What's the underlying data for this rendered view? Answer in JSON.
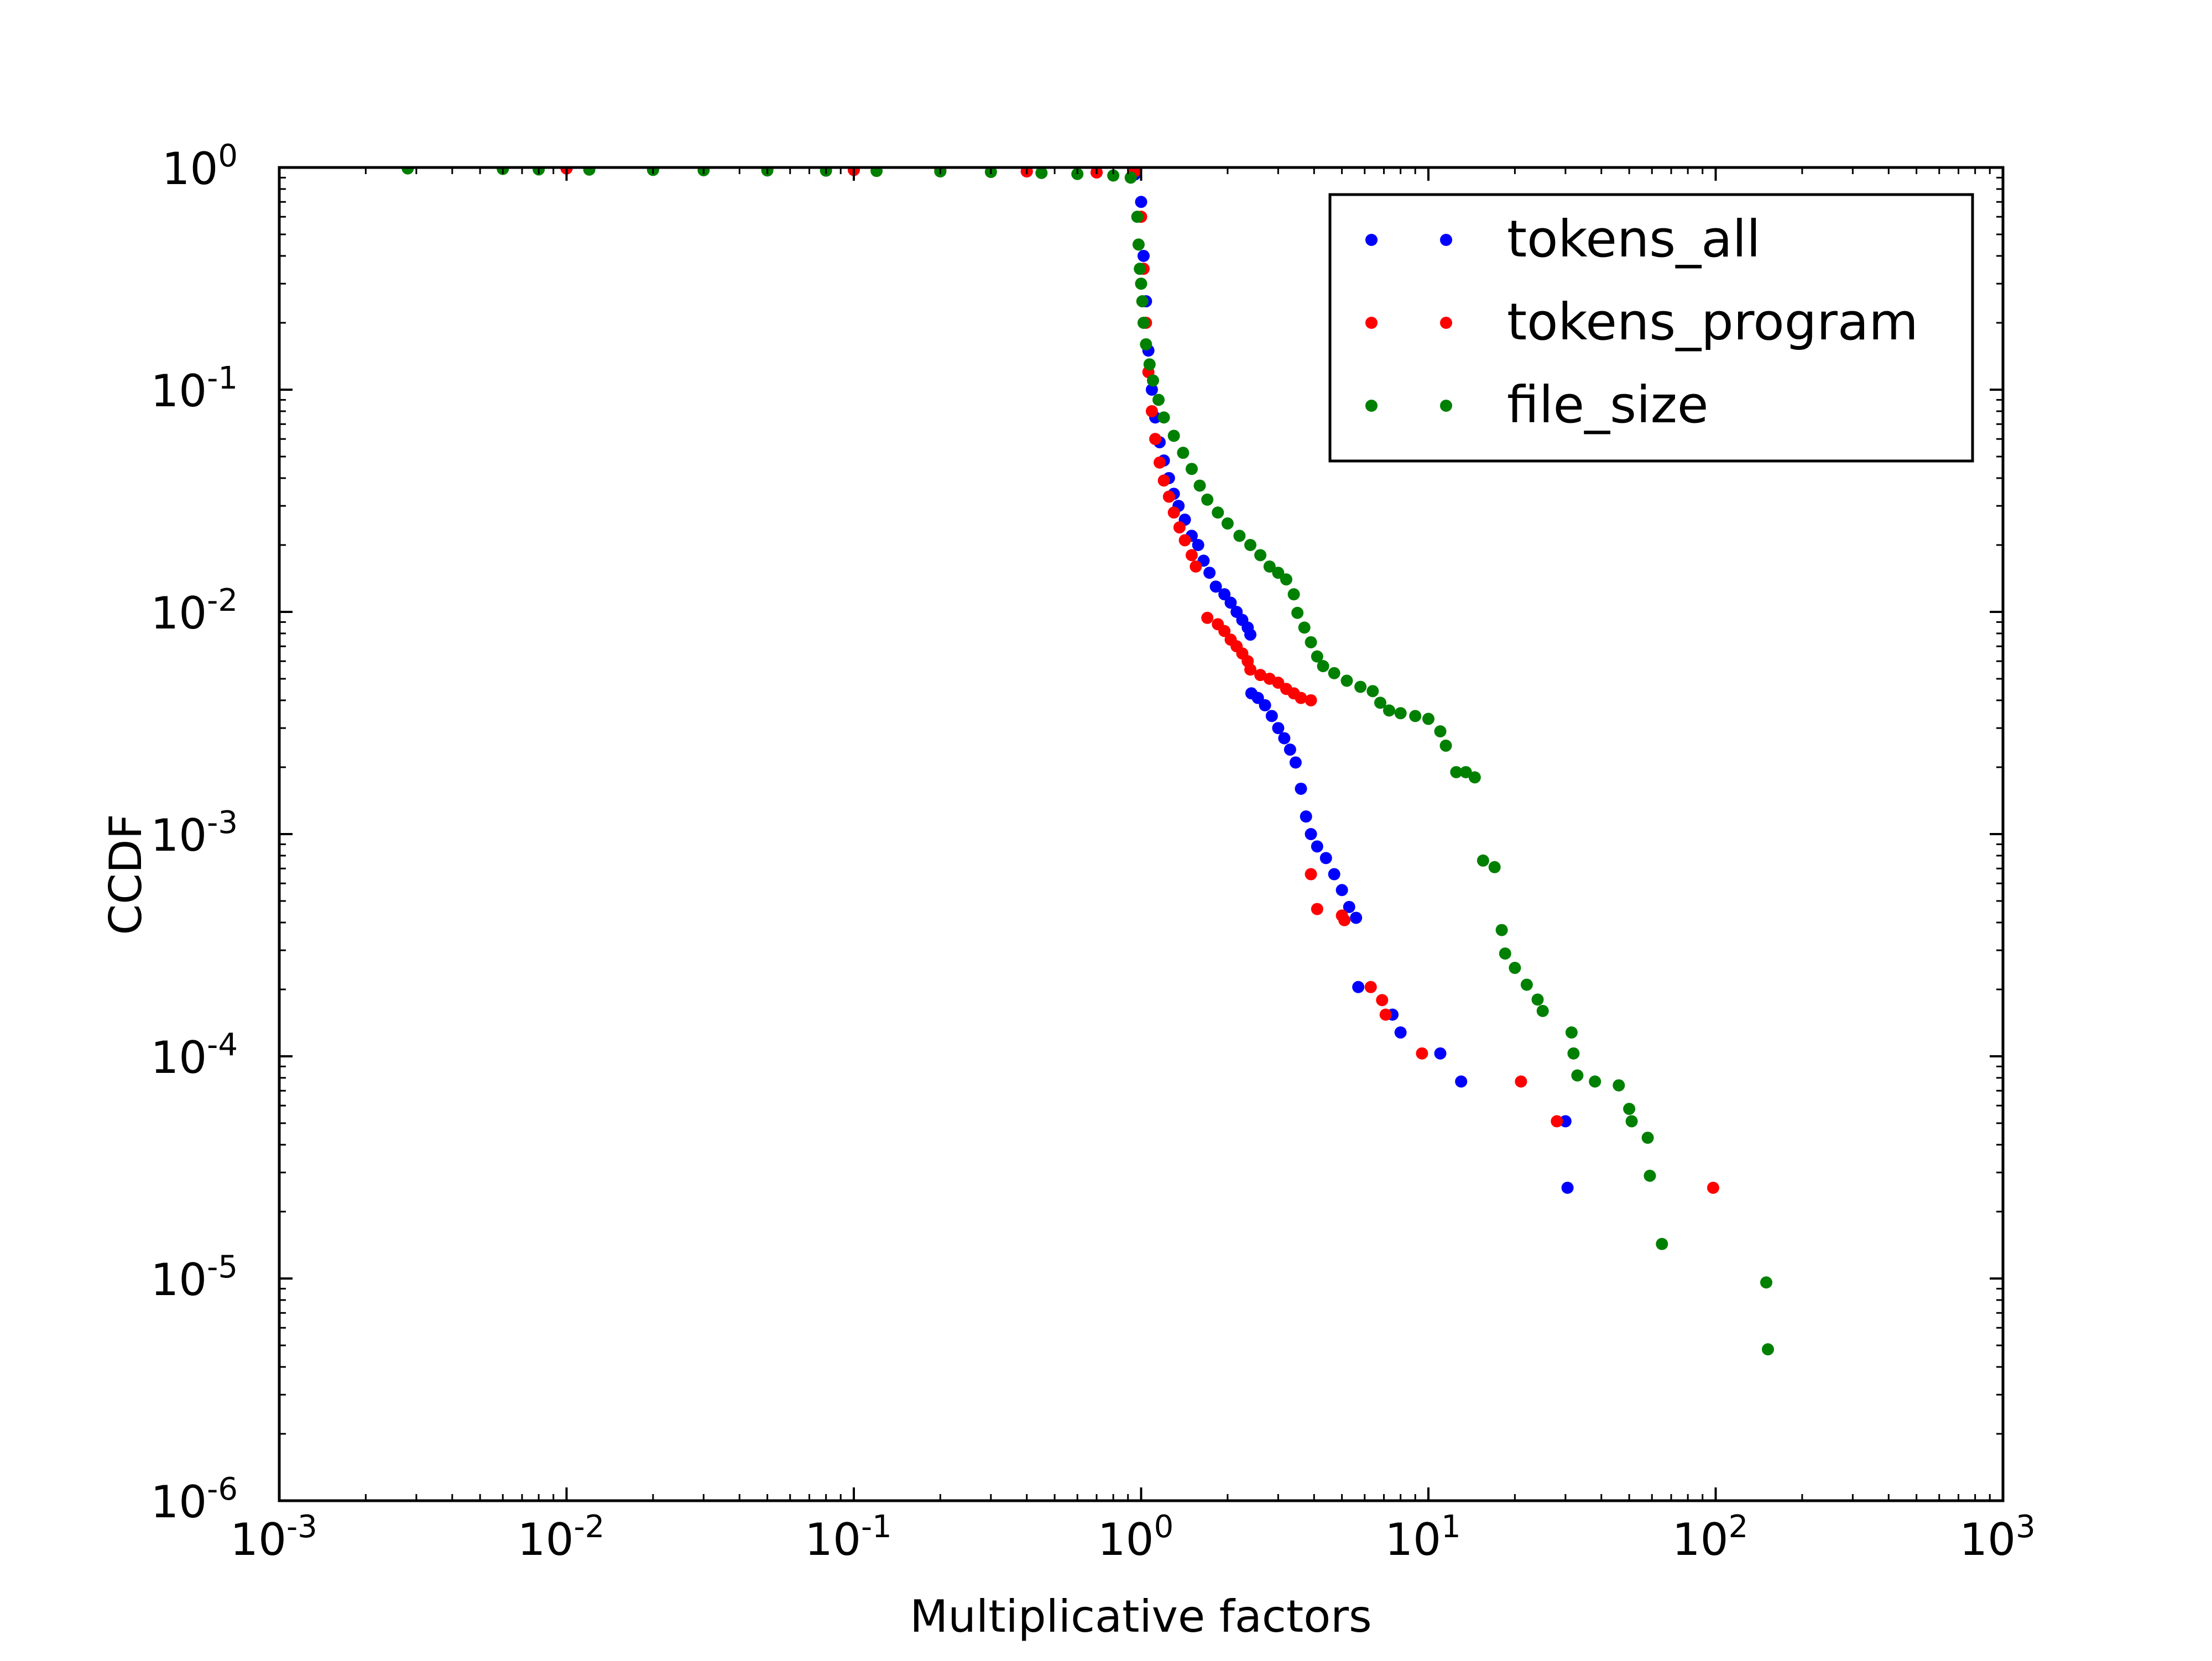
{
  "colors": {
    "tokens_all": "#0000ff",
    "tokens_program": "#ff0000",
    "file_size": "#008000",
    "axis": "#000000",
    "background": "#ffffff"
  },
  "chart_data": {
    "type": "scatter",
    "title": "",
    "xlabel": "Multiplicative factors",
    "ylabel": "CCDF",
    "xscale": "log",
    "yscale": "log",
    "xlim": [
      0.001,
      1000
    ],
    "ylim": [
      1e-06,
      1
    ],
    "grid": false,
    "legend": {
      "placement": "upper right"
    },
    "x_ticks": [
      {
        "value": 0.001,
        "base": "10",
        "exp": "-3"
      },
      {
        "value": 0.01,
        "base": "10",
        "exp": "-2"
      },
      {
        "value": 0.1,
        "base": "10",
        "exp": "-1"
      },
      {
        "value": 1,
        "base": "10",
        "exp": "0"
      },
      {
        "value": 10,
        "base": "10",
        "exp": "1"
      },
      {
        "value": 100,
        "base": "10",
        "exp": "2"
      },
      {
        "value": 1000,
        "base": "10",
        "exp": "3"
      }
    ],
    "y_ticks": [
      {
        "value": 1,
        "base": "10",
        "exp": "0"
      },
      {
        "value": 0.1,
        "base": "10",
        "exp": "-1"
      },
      {
        "value": 0.01,
        "base": "10",
        "exp": "-2"
      },
      {
        "value": 0.001,
        "base": "10",
        "exp": "-3"
      },
      {
        "value": 0.0001,
        "base": "10",
        "exp": "-4"
      },
      {
        "value": 1e-05,
        "base": "10",
        "exp": "-5"
      },
      {
        "value": 1e-06,
        "base": "10",
        "exp": "-6"
      }
    ],
    "series": [
      {
        "name": "tokens_all",
        "color": "#0000ff",
        "points": [
          [
            0.006,
            0.995
          ],
          [
            0.01,
            0.99
          ],
          [
            0.02,
            0.985
          ],
          [
            0.05,
            0.98
          ],
          [
            0.1,
            0.975
          ],
          [
            0.2,
            0.97
          ],
          [
            0.4,
            0.96
          ],
          [
            0.7,
            0.95
          ],
          [
            0.95,
            0.93
          ],
          [
            1.0,
            0.7
          ],
          [
            1.02,
            0.4
          ],
          [
            1.04,
            0.25
          ],
          [
            1.06,
            0.15
          ],
          [
            1.09,
            0.1
          ],
          [
            1.12,
            0.075
          ],
          [
            1.16,
            0.058
          ],
          [
            1.2,
            0.048
          ],
          [
            1.25,
            0.04
          ],
          [
            1.3,
            0.034
          ],
          [
            1.35,
            0.03
          ],
          [
            1.42,
            0.026
          ],
          [
            1.5,
            0.022
          ],
          [
            1.58,
            0.02
          ],
          [
            1.65,
            0.017
          ],
          [
            1.73,
            0.015
          ],
          [
            1.82,
            0.013
          ],
          [
            1.95,
            0.012
          ],
          [
            2.05,
            0.011
          ],
          [
            2.15,
            0.01
          ],
          [
            2.25,
            0.0092
          ],
          [
            2.35,
            0.0085
          ],
          [
            2.4,
            0.0079
          ],
          [
            2.42,
            0.0043
          ],
          [
            2.55,
            0.0041
          ],
          [
            2.7,
            0.0038
          ],
          [
            2.85,
            0.0034
          ],
          [
            3.0,
            0.003
          ],
          [
            3.15,
            0.0027
          ],
          [
            3.3,
            0.0024
          ],
          [
            3.45,
            0.0021
          ],
          [
            3.6,
            0.0016
          ],
          [
            3.75,
            0.0012
          ],
          [
            3.9,
            0.001
          ],
          [
            4.1,
            0.00088
          ],
          [
            4.4,
            0.00078
          ],
          [
            4.7,
            0.00066
          ],
          [
            5.0,
            0.00056
          ],
          [
            5.3,
            0.00047
          ],
          [
            5.6,
            0.00042
          ],
          [
            5.7,
            0.000205
          ],
          [
            7.5,
            0.000154
          ],
          [
            8.0,
            0.000128
          ],
          [
            11.0,
            0.000103
          ],
          [
            13.0,
            7.7e-05
          ],
          [
            30.0,
            5.1e-05
          ],
          [
            30.5,
            2.56e-05
          ]
        ]
      },
      {
        "name": "tokens_program",
        "color": "#ff0000",
        "points": [
          [
            0.006,
            0.995
          ],
          [
            0.01,
            0.99
          ],
          [
            0.02,
            0.985
          ],
          [
            0.05,
            0.98
          ],
          [
            0.1,
            0.975
          ],
          [
            0.2,
            0.97
          ],
          [
            0.4,
            0.96
          ],
          [
            0.7,
            0.95
          ],
          [
            0.95,
            0.96
          ],
          [
            1.0,
            0.6
          ],
          [
            1.02,
            0.35
          ],
          [
            1.04,
            0.2
          ],
          [
            1.06,
            0.12
          ],
          [
            1.09,
            0.08
          ],
          [
            1.12,
            0.06
          ],
          [
            1.16,
            0.047
          ],
          [
            1.2,
            0.039
          ],
          [
            1.25,
            0.033
          ],
          [
            1.3,
            0.028
          ],
          [
            1.36,
            0.024
          ],
          [
            1.42,
            0.021
          ],
          [
            1.5,
            0.018
          ],
          [
            1.55,
            0.016
          ],
          [
            1.7,
            0.0094
          ],
          [
            1.85,
            0.0088
          ],
          [
            1.95,
            0.0082
          ],
          [
            2.05,
            0.0075
          ],
          [
            2.15,
            0.007
          ],
          [
            2.25,
            0.0065
          ],
          [
            2.35,
            0.006
          ],
          [
            2.4,
            0.0055
          ],
          [
            2.6,
            0.0052
          ],
          [
            2.8,
            0.005
          ],
          [
            3.0,
            0.0048
          ],
          [
            3.2,
            0.0045
          ],
          [
            3.4,
            0.0043
          ],
          [
            3.6,
            0.0041
          ],
          [
            3.9,
            0.004
          ],
          [
            3.9,
            0.00066
          ],
          [
            4.1,
            0.00046
          ],
          [
            5.0,
            0.00043
          ],
          [
            5.1,
            0.00041
          ],
          [
            6.3,
            0.000205
          ],
          [
            6.9,
            0.000179
          ],
          [
            7.1,
            0.000154
          ],
          [
            9.5,
            0.000103
          ],
          [
            21.0,
            7.7e-05
          ],
          [
            28.0,
            5.1e-05
          ],
          [
            98.0,
            2.56e-05
          ]
        ]
      },
      {
        "name": "file_size",
        "color": "#008000",
        "points": [
          [
            0.0028,
            0.99
          ],
          [
            0.006,
            0.985
          ],
          [
            0.008,
            0.98
          ],
          [
            0.012,
            0.978
          ],
          [
            0.02,
            0.975
          ],
          [
            0.03,
            0.972
          ],
          [
            0.05,
            0.97
          ],
          [
            0.08,
            0.968
          ],
          [
            0.12,
            0.965
          ],
          [
            0.2,
            0.96
          ],
          [
            0.3,
            0.955
          ],
          [
            0.45,
            0.945
          ],
          [
            0.6,
            0.935
          ],
          [
            0.8,
            0.92
          ],
          [
            0.92,
            0.9
          ],
          [
            0.97,
            0.6
          ],
          [
            0.98,
            0.45
          ],
          [
            0.99,
            0.35
          ],
          [
            1.0,
            0.3
          ],
          [
            1.01,
            0.25
          ],
          [
            1.02,
            0.2
          ],
          [
            1.04,
            0.16
          ],
          [
            1.07,
            0.13
          ],
          [
            1.1,
            0.11
          ],
          [
            1.15,
            0.09
          ],
          [
            1.2,
            0.075
          ],
          [
            1.3,
            0.062
          ],
          [
            1.4,
            0.052
          ],
          [
            1.5,
            0.044
          ],
          [
            1.6,
            0.037
          ],
          [
            1.7,
            0.032
          ],
          [
            1.85,
            0.028
          ],
          [
            2.0,
            0.025
          ],
          [
            2.2,
            0.022
          ],
          [
            2.4,
            0.02
          ],
          [
            2.6,
            0.018
          ],
          [
            2.8,
            0.016
          ],
          [
            3.0,
            0.015
          ],
          [
            3.2,
            0.014
          ],
          [
            3.4,
            0.012
          ],
          [
            3.5,
            0.0099
          ],
          [
            3.7,
            0.0085
          ],
          [
            3.9,
            0.0073
          ],
          [
            4.1,
            0.0063
          ],
          [
            4.3,
            0.0057
          ],
          [
            4.7,
            0.0053
          ],
          [
            5.2,
            0.0049
          ],
          [
            5.8,
            0.0046
          ],
          [
            6.4,
            0.0044
          ],
          [
            6.8,
            0.0039
          ],
          [
            7.3,
            0.0036
          ],
          [
            8.0,
            0.0035
          ],
          [
            9.0,
            0.0034
          ],
          [
            10.0,
            0.0033
          ],
          [
            11.0,
            0.0029
          ],
          [
            11.5,
            0.0025
          ],
          [
            12.5,
            0.0019
          ],
          [
            13.5,
            0.0019
          ],
          [
            14.5,
            0.0018
          ],
          [
            15.5,
            0.00076
          ],
          [
            17.0,
            0.00071
          ],
          [
            18.0,
            0.00037
          ],
          [
            18.5,
            0.00029
          ],
          [
            20.0,
            0.00025
          ],
          [
            22.0,
            0.00021
          ],
          [
            24.0,
            0.00018
          ],
          [
            25.0,
            0.00016
          ],
          [
            31.5,
            0.000128
          ],
          [
            32.0,
            0.000103
          ],
          [
            33.0,
            8.2e-05
          ],
          [
            38.0,
            7.7e-05
          ],
          [
            46.0,
            7.4e-05
          ],
          [
            50.0,
            5.8e-05
          ],
          [
            51.0,
            5.1e-05
          ],
          [
            58.0,
            4.3e-05
          ],
          [
            59.0,
            2.9e-05
          ],
          [
            65.0,
            1.43e-05
          ],
          [
            150.0,
            9.6e-06
          ],
          [
            152.0,
            4.8e-06
          ]
        ]
      }
    ]
  }
}
